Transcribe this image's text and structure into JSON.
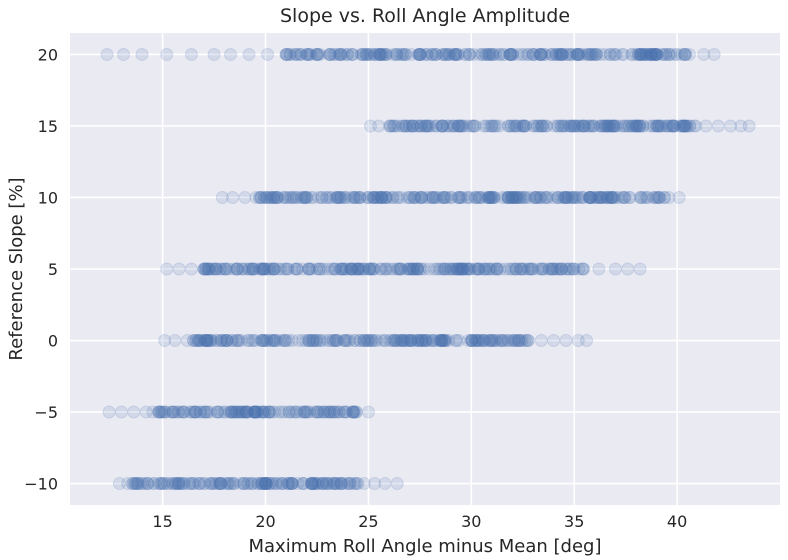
{
  "chart_data": {
    "type": "scatter",
    "title": "Slope vs. Roll Angle Amplitude",
    "xlabel": "Maximum Roll Angle  minus Mean [deg]",
    "ylabel": "Reference Slope [%]",
    "xlim": [
      10.5,
      45
    ],
    "ylim": [
      -11.5,
      21.5
    ],
    "xticks": [
      15,
      20,
      25,
      30,
      35,
      40
    ],
    "yticks": [
      -10,
      -5,
      0,
      5,
      10,
      15,
      20
    ],
    "ytick_labels": [
      "−10",
      "−5",
      "0",
      "5",
      "10",
      "15",
      "20"
    ],
    "grid": true,
    "background_color": "#EAEAF2",
    "grid_color": "#FFFFFF",
    "marker_color": "#4C72B0",
    "marker_alpha": 0.15,
    "marker_style": "open-circle",
    "series": [
      {
        "y": 20,
        "x_min": 12.0,
        "x_max": 41.8,
        "dense_min": 21.0,
        "dense_max": 40.5,
        "x": [
          12.3,
          13.1,
          14.0,
          15.2,
          16.4,
          17.5,
          18.3,
          19.2,
          20.1,
          21.0,
          22.0,
          23.1,
          24.2,
          25.3,
          26.4,
          27.5,
          28.6,
          29.7,
          30.8,
          31.9,
          33.0,
          34.1,
          35.2,
          36.3,
          37.4,
          38.5,
          39.6,
          40.6,
          41.3,
          41.8
        ]
      },
      {
        "y": 15,
        "x_min": 25.0,
        "x_max": 43.5,
        "dense_min": 26.0,
        "dense_max": 41.0,
        "x": [
          25.1,
          25.5,
          26.2,
          27.0,
          27.8,
          28.6,
          29.4,
          30.2,
          31.0,
          31.8,
          32.6,
          33.4,
          34.2,
          35.0,
          35.8,
          36.6,
          37.4,
          38.2,
          39.0,
          39.8,
          40.6,
          41.4,
          42.0,
          42.6,
          43.1,
          43.5
        ]
      },
      {
        "y": 10,
        "x_min": 17.8,
        "x_max": 40.2,
        "dense_min": 19.5,
        "dense_max": 39.5,
        "x": [
          17.9,
          18.4,
          19.0,
          19.8,
          20.6,
          21.4,
          22.2,
          23.0,
          23.8,
          24.6,
          25.4,
          26.2,
          27.0,
          27.8,
          28.6,
          29.4,
          30.2,
          31.0,
          31.8,
          32.6,
          33.4,
          34.2,
          35.0,
          35.8,
          36.6,
          37.4,
          38.2,
          39.0,
          39.6,
          40.1
        ]
      },
      {
        "y": 5,
        "x_min": 15.1,
        "x_max": 38.3,
        "dense_min": 17.0,
        "dense_max": 35.5,
        "x": [
          15.2,
          15.8,
          16.4,
          17.0,
          17.8,
          18.6,
          19.4,
          20.2,
          21.0,
          21.8,
          22.6,
          23.4,
          24.2,
          25.0,
          25.8,
          26.6,
          27.4,
          28.2,
          29.0,
          29.8,
          30.6,
          31.4,
          32.2,
          33.0,
          33.8,
          34.6,
          35.4,
          36.2,
          37.0,
          37.6,
          38.2
        ]
      },
      {
        "y": 0,
        "x_min": 15.0,
        "x_max": 35.7,
        "dense_min": 16.5,
        "dense_max": 33.0,
        "x": [
          15.1,
          15.6,
          16.2,
          16.8,
          17.4,
          18.0,
          18.6,
          19.2,
          19.8,
          20.4,
          21.0,
          21.6,
          22.2,
          22.8,
          23.4,
          24.0,
          24.6,
          25.2,
          25.8,
          26.4,
          27.0,
          27.8,
          28.6,
          29.4,
          30.2,
          31.0,
          31.8,
          32.6,
          33.4,
          34.0,
          34.6,
          35.2,
          35.6
        ]
      },
      {
        "y": -5,
        "x_min": 12.3,
        "x_max": 25.2,
        "dense_min": 14.5,
        "dense_max": 24.5,
        "x": [
          12.4,
          13.0,
          13.6,
          14.2,
          14.8,
          15.4,
          16.0,
          16.6,
          17.2,
          17.8,
          18.4,
          19.0,
          19.6,
          20.2,
          20.8,
          21.4,
          22.0,
          22.6,
          23.2,
          23.8,
          24.4,
          25.0
        ]
      },
      {
        "y": -10,
        "x_min": 12.8,
        "x_max": 26.5,
        "dense_min": 13.5,
        "dense_max": 24.5,
        "x": [
          12.9,
          13.3,
          13.8,
          14.3,
          14.8,
          15.3,
          15.8,
          16.3,
          16.8,
          17.3,
          17.8,
          18.3,
          18.8,
          19.3,
          19.8,
          20.3,
          20.8,
          21.3,
          21.8,
          22.3,
          22.8,
          23.3,
          23.8,
          24.3,
          24.8,
          25.3,
          25.8,
          26.4
        ]
      }
    ]
  }
}
